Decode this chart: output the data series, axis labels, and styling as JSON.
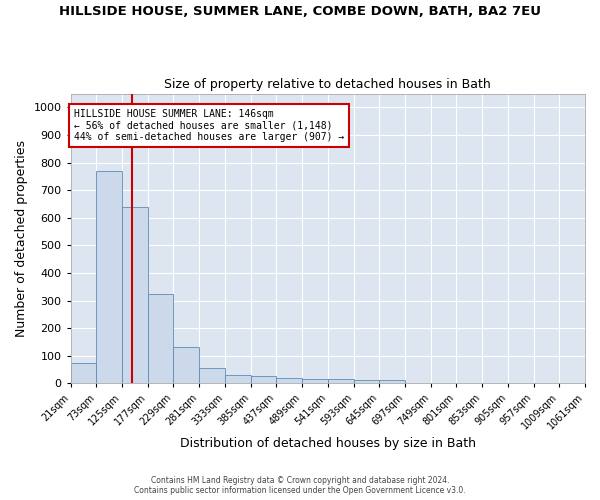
{
  "title": "HILLSIDE HOUSE, SUMMER LANE, COMBE DOWN, BATH, BA2 7EU",
  "subtitle": "Size of property relative to detached houses in Bath",
  "xlabel": "Distribution of detached houses by size in Bath",
  "ylabel": "Number of detached properties",
  "bar_color": "#ccd9ea",
  "bar_edge_color": "#5b8db8",
  "background_color": "#dde6f0",
  "grid_color": "#ffffff",
  "annotation_line_color": "#cc0000",
  "annotation_property_sqm": 146,
  "annotation_text_line1": "HILLSIDE HOUSE SUMMER LANE: 146sqm",
  "annotation_text_line2": "← 56% of detached houses are smaller (1,148)",
  "annotation_text_line3": "44% of semi-detached houses are larger (907) →",
  "annotation_box_color": "#ffffff",
  "annotation_box_edge_color": "#cc0000",
  "bins": [
    21,
    73,
    125,
    177,
    229,
    281,
    333,
    385,
    437,
    489,
    541,
    593,
    645,
    697,
    749,
    801,
    853,
    905,
    957,
    1009,
    1061
  ],
  "bin_labels": [
    "21sqm",
    "73sqm",
    "125sqm",
    "177sqm",
    "229sqm",
    "281sqm",
    "333sqm",
    "385sqm",
    "437sqm",
    "489sqm",
    "541sqm",
    "593sqm",
    "645sqm",
    "697sqm",
    "749sqm",
    "801sqm",
    "853sqm",
    "905sqm",
    "957sqm",
    "1009sqm",
    "1061sqm"
  ],
  "values": [
    75,
    770,
    640,
    325,
    130,
    55,
    30,
    25,
    20,
    15,
    15,
    12,
    12,
    0,
    0,
    0,
    0,
    0,
    0,
    0
  ],
  "ylim": [
    0,
    1050
  ],
  "yticks": [
    0,
    100,
    200,
    300,
    400,
    500,
    600,
    700,
    800,
    900,
    1000
  ],
  "footer_line1": "Contains HM Land Registry data © Crown copyright and database right 2024.",
  "footer_line2": "Contains public sector information licensed under the Open Government Licence v3.0."
}
